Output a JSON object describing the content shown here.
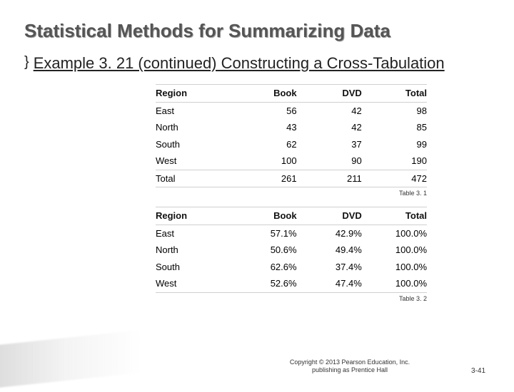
{
  "title": "Statistical Methods for Summarizing Data",
  "subtitle": "Example 3. 21 (continued) Constructing a Cross-Tabulation",
  "brace": "}",
  "table1": {
    "caption": "Table 3. 1",
    "columns": [
      "Region",
      "Book",
      "DVD",
      "Total"
    ],
    "rows": [
      [
        "East",
        "56",
        "42",
        "98"
      ],
      [
        "North",
        "43",
        "42",
        "85"
      ],
      [
        "South",
        "62",
        "37",
        "99"
      ],
      [
        "West",
        "100",
        "90",
        "190"
      ],
      [
        "Total",
        "261",
        "211",
        "472"
      ]
    ]
  },
  "table2": {
    "caption": "Table 3. 2",
    "columns": [
      "Region",
      "Book",
      "DVD",
      "Total"
    ],
    "rows": [
      [
        "East",
        "57.1%",
        "42.9%",
        "100.0%"
      ],
      [
        "North",
        "50.6%",
        "49.4%",
        "100.0%"
      ],
      [
        "South",
        "62.6%",
        "37.4%",
        "100.0%"
      ],
      [
        "West",
        "52.6%",
        "47.4%",
        "100.0%"
      ]
    ]
  },
  "copyright_l1": "Copyright © 2013 Pearson Education, Inc.",
  "copyright_l2": "publishing as Prentice Hall",
  "pagenum": "3-41",
  "colors": {
    "title": "#555555",
    "text": "#222222",
    "rule": "#d0d0d0",
    "wedge_from": "#d0d0d0"
  }
}
